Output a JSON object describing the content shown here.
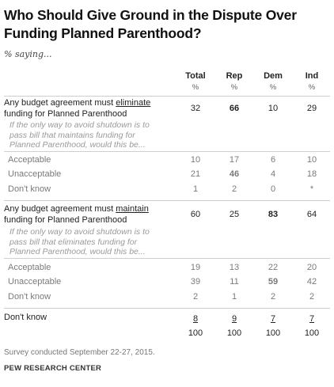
{
  "title": "Who Should Give Ground in the Dispute Over Funding Planned Parenthood?",
  "subtitle": "% saying...",
  "columns": [
    "Total",
    "Rep",
    "Dem",
    "Ind"
  ],
  "pct_symbol": "%",
  "section1": {
    "label_pre": "Any budget agreement must ",
    "label_key": "eliminate",
    "label_post": " funding for Planned Parenthood",
    "values": [
      "32",
      "66",
      "10",
      "29"
    ],
    "note": "If the only way to avoid shutdown is to pass bill that maintains funding for Planned Parenthood, would this be...",
    "subrows": [
      {
        "label": "Acceptable",
        "values": [
          "10",
          "17",
          "6",
          "10"
        ]
      },
      {
        "label": "Unacceptable",
        "values": [
          "21",
          "46",
          "4",
          "18"
        ]
      },
      {
        "label": "Don't know",
        "values": [
          "1",
          "2",
          "0",
          "*"
        ]
      }
    ]
  },
  "section2": {
    "label_pre": "Any budget agreement must ",
    "label_key": "maintain",
    "label_post": " funding for Planned Parenthood",
    "values": [
      "60",
      "25",
      "83",
      "64"
    ],
    "note": "If the only way to avoid shutdown is to pass bill that eliminates funding for Planned Parenthood, would this be...",
    "subrows": [
      {
        "label": "Acceptable",
        "values": [
          "19",
          "13",
          "22",
          "20"
        ]
      },
      {
        "label": "Unacceptable",
        "values": [
          "39",
          "11",
          "59",
          "42"
        ]
      },
      {
        "label": "Don't know",
        "values": [
          "2",
          "1",
          "2",
          "2"
        ]
      }
    ]
  },
  "dont_know": {
    "label": "Don't know",
    "values": [
      "8",
      "9",
      "7",
      "7"
    ]
  },
  "totals": [
    "100",
    "100",
    "100",
    "100"
  ],
  "footnote": "Survey conducted September 22-27, 2015.",
  "source": "PEW RESEARCH CENTER"
}
